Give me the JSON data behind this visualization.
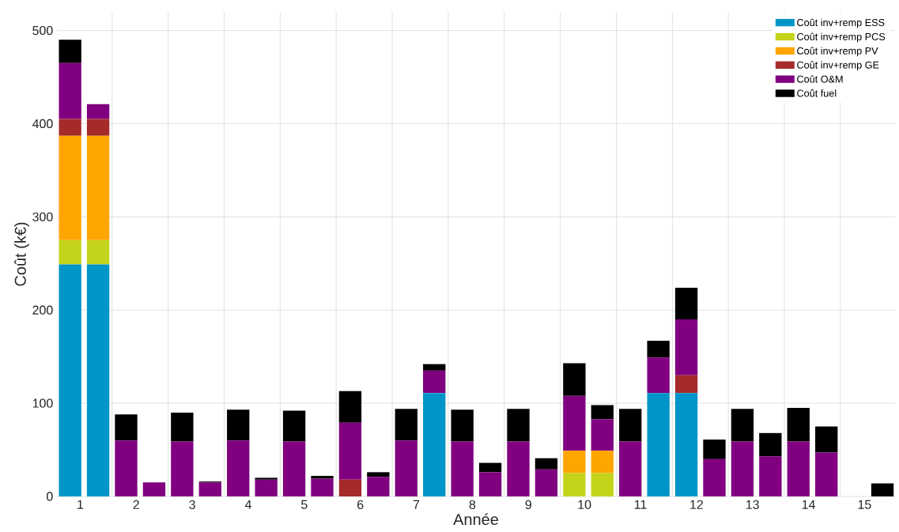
{
  "chart_data": {
    "type": "bar",
    "stacked": true,
    "xlabel": "Année",
    "ylabel": "Coût (k€)",
    "categories": [
      "1",
      null,
      "2",
      null,
      "3",
      null,
      "4",
      null,
      "5",
      null,
      "6",
      null,
      "7",
      null,
      "8",
      null,
      "9",
      null,
      "10",
      null,
      "11",
      null,
      "12",
      null,
      "13",
      null,
      "14",
      null,
      "15",
      null
    ],
    "series": [
      {
        "name": "Coût inv+remp ESS",
        "color": "#0095c8",
        "values": [
          249,
          249,
          0,
          0,
          0,
          0,
          0,
          0,
          0,
          0,
          0,
          0,
          0,
          111,
          0,
          0,
          0,
          0,
          0,
          0,
          0,
          111,
          111,
          0,
          0,
          0,
          0,
          0,
          0,
          0
        ]
      },
      {
        "name": "Coût inv+remp PCS",
        "color": "#c3d41a",
        "values": [
          26,
          26,
          0,
          0,
          0,
          0,
          0,
          0,
          0,
          0,
          0,
          0,
          0,
          0,
          0,
          0,
          0,
          0,
          25,
          25,
          0,
          0,
          0,
          0,
          0,
          0,
          0,
          0,
          0,
          0
        ]
      },
      {
        "name": "Coût inv+remp PV",
        "color": "#ffa500",
        "values": [
          112,
          112,
          0,
          0,
          0,
          0,
          0,
          0,
          0,
          0,
          0,
          0,
          0,
          0,
          0,
          0,
          0,
          0,
          24,
          24,
          0,
          0,
          0,
          0,
          0,
          0,
          0,
          0,
          0,
          0
        ]
      },
      {
        "name": "Coût inv+remp GE",
        "color": "#a52a2a",
        "values": [
          18,
          18,
          0,
          0,
          0,
          0,
          0,
          0,
          0,
          0,
          18,
          0,
          0,
          0,
          0,
          0,
          0,
          0,
          0,
          0,
          0,
          0,
          19,
          0,
          0,
          0,
          0,
          0,
          0,
          0
        ]
      },
      {
        "name": "Coût O&M",
        "color": "#800080",
        "values": [
          60,
          16,
          60,
          15,
          59,
          15,
          60,
          18,
          59,
          19,
          61,
          21,
          60,
          24,
          59,
          26,
          59,
          29,
          59,
          34,
          59,
          38,
          60,
          40,
          59,
          43,
          59,
          47,
          0,
          0
        ]
      },
      {
        "name": "Coût fuel",
        "color": "#000000",
        "values": [
          25,
          0,
          28,
          0,
          31,
          1,
          33,
          2,
          33,
          3,
          34,
          5,
          34,
          7,
          34,
          10,
          35,
          12,
          35,
          15,
          35,
          18,
          34,
          21,
          35,
          25,
          36,
          28,
          0,
          14
        ]
      }
    ],
    "ylim": [
      0,
      520
    ],
    "yticks": [
      0,
      100,
      200,
      300,
      400,
      500
    ],
    "grid": true,
    "legend": "top right"
  }
}
